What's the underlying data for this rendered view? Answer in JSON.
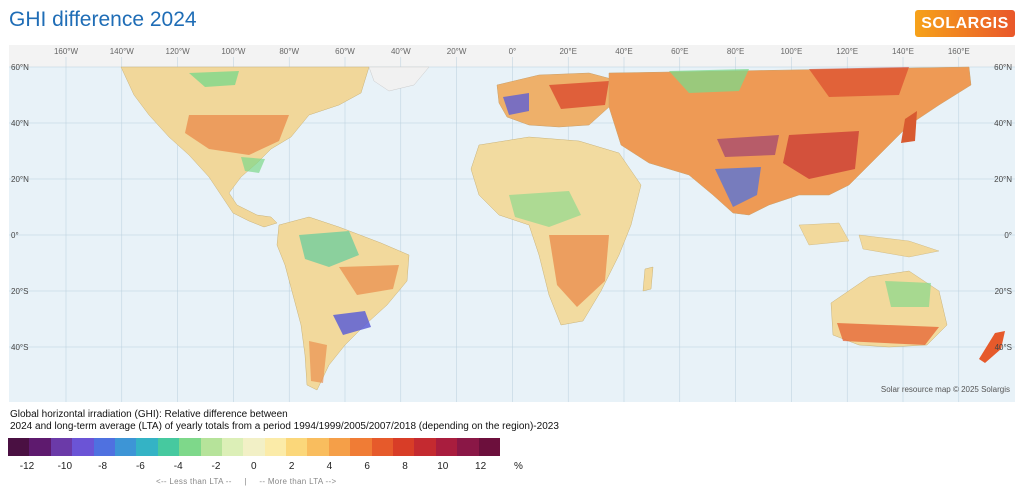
{
  "title": "GHI difference 2024",
  "logo": "SOLARGIS",
  "credit": "Solar resource map © 2025 Solargis",
  "description": {
    "line1": "Global horizontal irradiation (GHI): Relative difference between",
    "line2": "2024 and long-term average (LTA) of yearly totals from a period 1994/1999/2005/2007/2018 (depending on the region)-2023"
  },
  "map": {
    "lon_labels": [
      "160°W",
      "140°W",
      "120°W",
      "100°W",
      "80°W",
      "60°W",
      "40°W",
      "20°W",
      "0°",
      "20°E",
      "40°E",
      "60°E",
      "80°E",
      "100°E",
      "120°E",
      "140°E",
      "160°E"
    ],
    "lat_labels": [
      "60°N",
      "40°N",
      "20°N",
      "0°",
      "20°S",
      "40°S"
    ],
    "colors": {
      "ocean": "#e8f2f8",
      "land": "#f3e6b0",
      "grid": "#b9cfdd"
    }
  },
  "legend": {
    "unit": "%",
    "ticks": [
      "-12",
      "-10",
      "-8",
      "-6",
      "-4",
      "-2",
      "0",
      "2",
      "4",
      "6",
      "8",
      "10",
      "12"
    ],
    "colors": [
      "#4a1042",
      "#5e1a6e",
      "#6b3aa8",
      "#6b54d6",
      "#4f71e0",
      "#3d95d6",
      "#34b3c5",
      "#46c99f",
      "#7ed88a",
      "#b6e39a",
      "#dcefb7",
      "#f2f0c6",
      "#fbeba8",
      "#fbd77a",
      "#f9bd5e",
      "#f59f48",
      "#f07c35",
      "#e65a2b",
      "#d83d27",
      "#c42a30",
      "#a91d3e",
      "#8a1746",
      "#6c0f3c"
    ],
    "hint_less": "<-- Less than LTA --",
    "hint_sep": "|",
    "hint_more": "-- More than LTA -->"
  }
}
